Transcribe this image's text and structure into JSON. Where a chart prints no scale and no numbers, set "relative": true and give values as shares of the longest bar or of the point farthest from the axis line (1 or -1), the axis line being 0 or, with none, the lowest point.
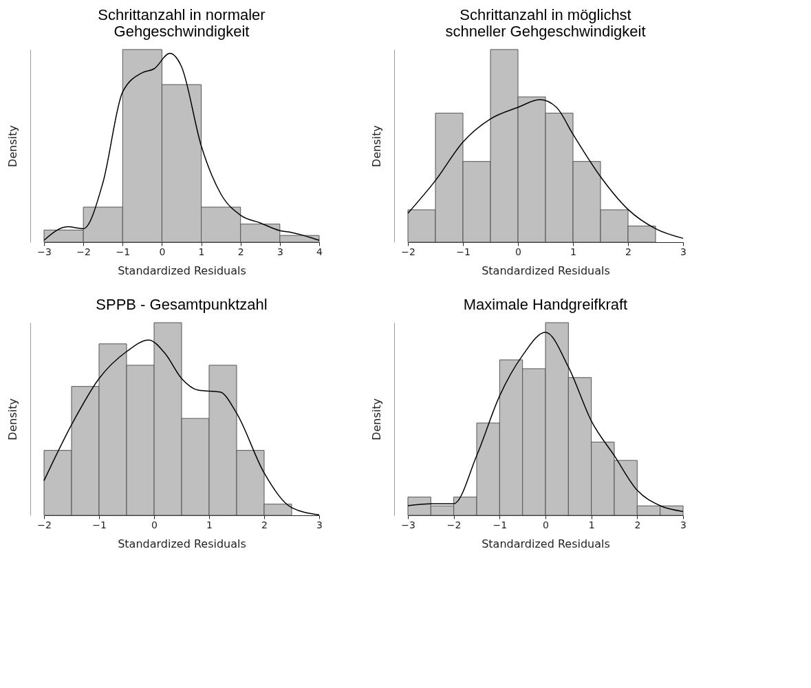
{
  "chart_data": [
    {
      "type": "histogram",
      "title": "Schrittanzahl in normaler Gehgeschwindigkeit",
      "xlabel": "Standardized Residuals",
      "ylabel": "Density",
      "relative": true,
      "xlim": [
        -3,
        4
      ],
      "xticks": [
        -3,
        -2,
        -1,
        0,
        1,
        2,
        3,
        4
      ],
      "grid": false,
      "legend": false,
      "bins": [
        -3,
        -2,
        -1,
        0,
        1,
        2,
        3,
        4
      ],
      "series": [
        {
          "type": "histogram",
          "color": "#bfbfbf",
          "values": [
            0.063,
            0.182,
            1,
            0.818,
            0.182,
            0.094,
            0.035
          ]
        },
        {
          "type": "line",
          "color": "#000000",
          "x": [
            -3,
            -2.4,
            -2,
            -1.5,
            -1,
            -0.5,
            -0.2,
            0.2,
            0.5,
            1,
            1.5,
            2,
            2.5,
            3,
            3.3,
            4
          ],
          "values": [
            0.01,
            0.08,
            0.07,
            0.31,
            0.78,
            0.88,
            0.9,
            0.98,
            0.91,
            0.5,
            0.25,
            0.14,
            0.1,
            0.06,
            0.05,
            0.01
          ]
        }
      ]
    },
    {
      "type": "histogram",
      "title": "Schrittanzahl in möglichst schneller Gehgeschwindigkeit",
      "xlabel": "Standardized Residuals",
      "ylabel": "Density",
      "relative": true,
      "xlim": [
        -2,
        3
      ],
      "xticks": [
        -2,
        -1,
        0,
        1,
        2,
        3
      ],
      "grid": false,
      "legend": false,
      "bins": [
        -2,
        -1.5,
        -1,
        -0.5,
        0,
        0.5,
        1,
        1.5,
        2,
        2.5
      ],
      "series": [
        {
          "type": "histogram",
          "color": "#bfbfbf",
          "values": [
            0.168,
            0.67,
            0.419,
            1,
            0.754,
            0.67,
            0.419,
            0.168,
            0.084
          ]
        },
        {
          "type": "line",
          "color": "#000000",
          "x": [
            -2,
            -1.5,
            -1,
            -0.5,
            0,
            0.4,
            0.7,
            1,
            1.5,
            2,
            2.5,
            3
          ],
          "values": [
            0.15,
            0.32,
            0.52,
            0.64,
            0.7,
            0.74,
            0.7,
            0.56,
            0.34,
            0.17,
            0.07,
            0.02
          ]
        }
      ]
    },
    {
      "type": "histogram",
      "title": "SPPB - Gesamtpunktzahl",
      "xlabel": "Standardized Residuals",
      "ylabel": "Density",
      "relative": true,
      "xlim": [
        -2,
        3
      ],
      "xticks": [
        -2,
        -1,
        0,
        1,
        2,
        3
      ],
      "grid": false,
      "legend": false,
      "bins": [
        -2,
        -1.5,
        -1,
        -0.5,
        0,
        0.5,
        1,
        1.5,
        2,
        2.5
      ],
      "series": [
        {
          "type": "histogram",
          "color": "#bfbfbf",
          "values": [
            0.337,
            0.669,
            0.89,
            0.779,
            1,
            0.503,
            0.779,
            0.337,
            0.058
          ]
        },
        {
          "type": "line",
          "color": "#000000",
          "x": [
            -2,
            -1.5,
            -1,
            -0.5,
            -0.1,
            0.2,
            0.5,
            0.8,
            1.2,
            1.5,
            2,
            2.5,
            3
          ],
          "values": [
            0.18,
            0.47,
            0.71,
            0.85,
            0.91,
            0.84,
            0.71,
            0.65,
            0.64,
            0.53,
            0.22,
            0.04,
            0.003
          ]
        }
      ]
    },
    {
      "type": "histogram",
      "title": "Maximale Handgreifkraft",
      "xlabel": "Standardized Residuals",
      "ylabel": "Density",
      "relative": true,
      "xlim": [
        -3,
        3
      ],
      "xticks": [
        -3,
        -2,
        -1,
        0,
        1,
        2,
        3
      ],
      "grid": false,
      "legend": false,
      "bins": [
        -3,
        -2.5,
        -2,
        -1.5,
        -1,
        -0.5,
        0,
        0.5,
        1,
        1.5,
        2,
        2.5,
        3
      ],
      "series": [
        {
          "type": "histogram",
          "color": "#bfbfbf",
          "values": [
            0.095,
            0.049,
            0.095,
            0.479,
            0.807,
            0.761,
            1,
            0.715,
            0.38,
            0.285,
            0.049,
            0.049
          ]
        },
        {
          "type": "line",
          "color": "#000000",
          "x": [
            -3,
            -2.5,
            -2,
            -1.5,
            -1,
            -0.5,
            0,
            0.5,
            1,
            1.5,
            2,
            2.5,
            3
          ],
          "values": [
            0.05,
            0.06,
            0.06,
            0.31,
            0.62,
            0.83,
            0.95,
            0.77,
            0.49,
            0.31,
            0.13,
            0.05,
            0.02
          ]
        }
      ]
    }
  ]
}
